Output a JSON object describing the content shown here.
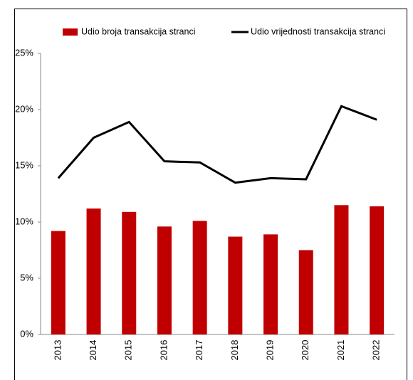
{
  "chart_data": {
    "type": "bar_line",
    "categories": [
      "2013",
      "2014",
      "2015",
      "2016",
      "2017",
      "2018",
      "2019",
      "2020",
      "2021",
      "2022"
    ],
    "series": [
      {
        "name": "Udio broja transakcija stranci",
        "type": "bar",
        "color": "#c00000",
        "values": [
          9.2,
          11.2,
          10.9,
          9.6,
          10.1,
          8.7,
          8.9,
          7.5,
          11.5,
          11.4
        ]
      },
      {
        "name": "Udio vrijednosti transakcija stranci",
        "type": "line",
        "color": "#000000",
        "values": [
          13.9,
          17.5,
          18.9,
          15.4,
          15.3,
          13.5,
          13.9,
          13.8,
          20.3,
          19.1
        ]
      }
    ],
    "ylim": [
      0,
      25
    ],
    "yticks": [
      {
        "value": 0,
        "label": "0%"
      },
      {
        "value": 5,
        "label": "5%"
      },
      {
        "value": 10,
        "label": "10%"
      },
      {
        "value": 15,
        "label": "15%"
      },
      {
        "value": 20,
        "label": "20%"
      },
      {
        "value": 25,
        "label": "25%"
      }
    ],
    "grid": false,
    "legend": "top"
  }
}
